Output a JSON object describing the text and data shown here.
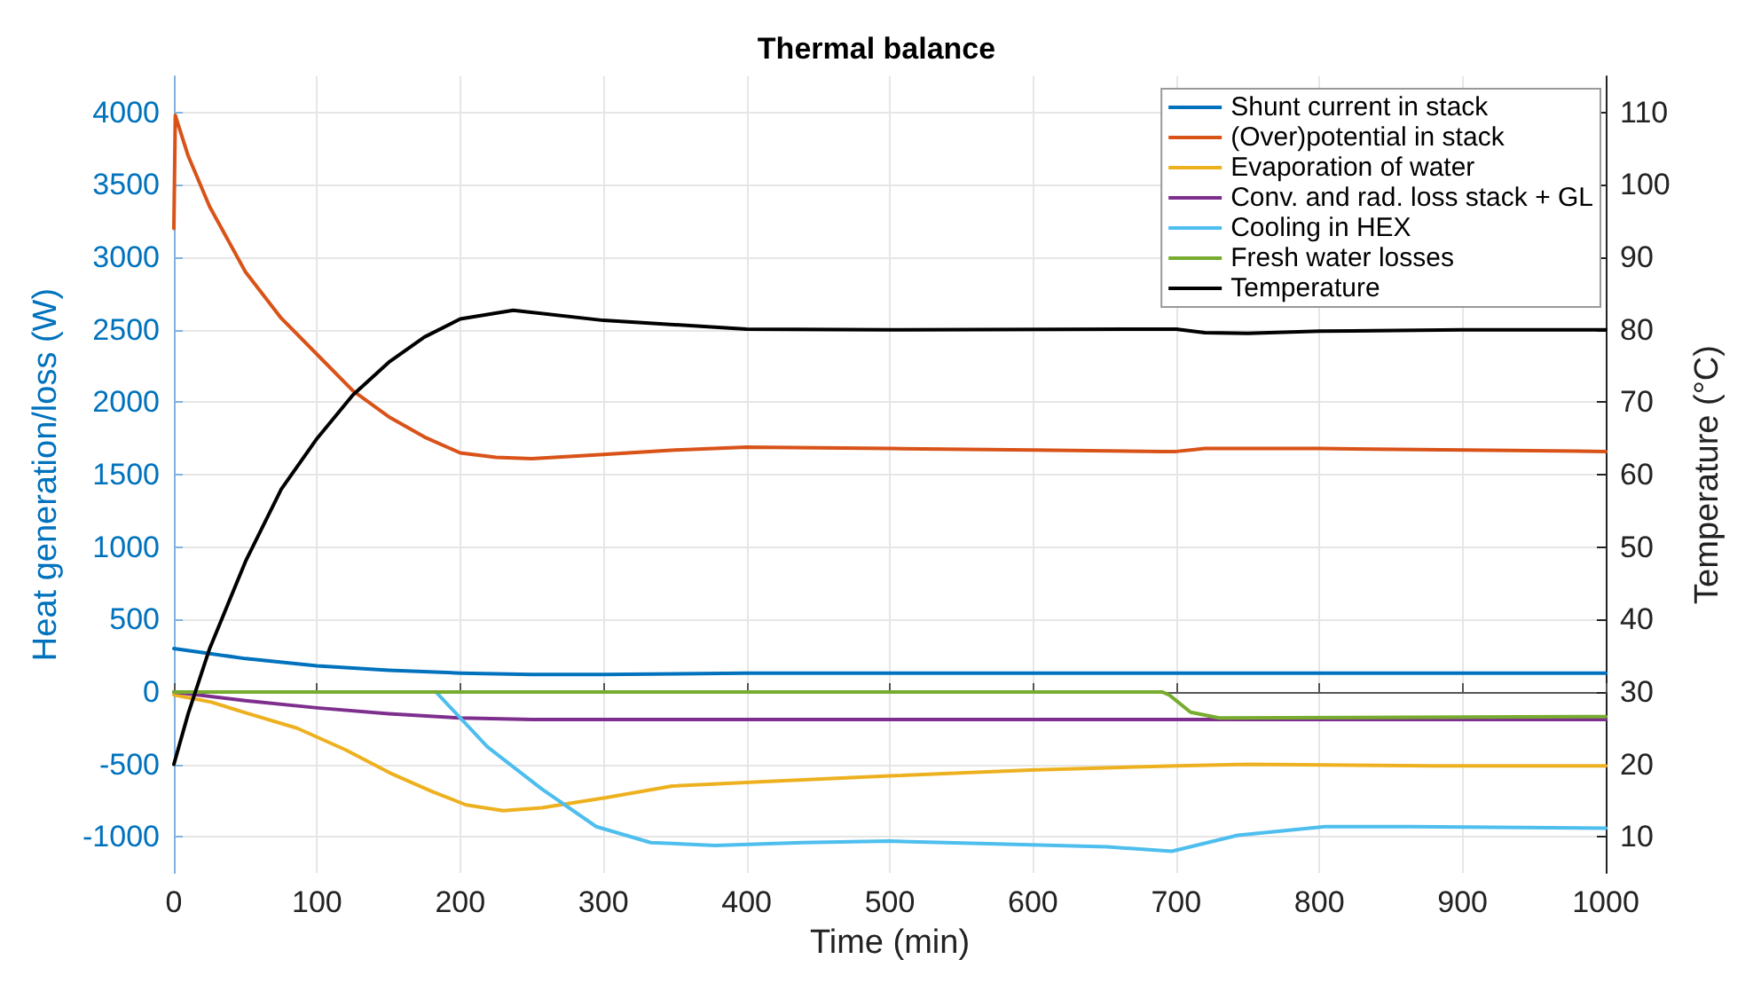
{
  "chart_data": {
    "type": "line",
    "title": "Thermal balance",
    "xlabel": "Time (min)",
    "ylabel": "Heat generation/loss (W)",
    "y2label": "Temperature (°C)",
    "xlim": [
      0,
      1000
    ],
    "xticks": [
      0,
      100,
      200,
      300,
      400,
      500,
      600,
      700,
      800,
      900,
      1000
    ],
    "ylim": [
      -1250,
      4250
    ],
    "yticks": [
      -1000,
      -500,
      0,
      500,
      1000,
      1500,
      2000,
      2500,
      3000,
      3500,
      4000
    ],
    "y2lim": [
      5,
      115
    ],
    "y2ticks": [
      10,
      20,
      30,
      40,
      50,
      60,
      70,
      80,
      90,
      100,
      110
    ],
    "grid": true,
    "legend": "top right",
    "line_style": "solid",
    "marker": "none",
    "series": [
      {
        "name": "Shunt current in stack",
        "color": "#0072bd",
        "x": [
          0,
          50,
          100,
          150,
          200,
          250,
          300,
          400,
          500,
          700,
          1000
        ],
        "values": [
          300,
          230,
          180,
          150,
          130,
          120,
          120,
          130,
          130,
          130,
          130
        ]
      },
      {
        "name": "(Over)potential in stack",
        "color": "#d95319",
        "x": [
          0,
          1,
          10,
          25,
          50,
          75,
          100,
          125,
          150,
          175,
          200,
          225,
          250,
          300,
          350,
          400,
          500,
          600,
          690,
          700,
          720,
          800,
          1000
        ],
        "values": [
          3200,
          3980,
          3700,
          3350,
          2900,
          2580,
          2330,
          2080,
          1900,
          1760,
          1650,
          1620,
          1610,
          1640,
          1670,
          1690,
          1680,
          1670,
          1660,
          1660,
          1680,
          1680,
          1660
        ]
      },
      {
        "name": "Evaporation of water",
        "color": "#edb120",
        "x": [
          0,
          26,
          52,
          86,
          120,
          151,
          181,
          204,
          230,
          257,
          302,
          348,
          409,
          500,
          598,
          700,
          750,
          879,
          1000
        ],
        "values": [
          -20,
          -70,
          -150,
          -250,
          -400,
          -560,
          -690,
          -780,
          -820,
          -800,
          -730,
          -650,
          -620,
          -580,
          -540,
          -510,
          -500,
          -510,
          -510
        ]
      },
      {
        "name": "Conv. and rad. loss stack + GL",
        "color": "#7e2f8e",
        "x": [
          0,
          50,
          100,
          150,
          200,
          250,
          300,
          500,
          1000
        ],
        "values": [
          0,
          -60,
          -110,
          -150,
          -180,
          -190,
          -190,
          -190,
          -190
        ]
      },
      {
        "name": "Cooling in HEX",
        "color": "#4dbeee",
        "x": [
          183,
          219,
          257,
          295,
          333,
          378,
          439,
          500,
          575,
          652,
          697,
          743,
          804,
          864,
          1000
        ],
        "values": [
          0,
          -380,
          -670,
          -930,
          -1040,
          -1060,
          -1040,
          -1030,
          -1050,
          -1070,
          -1100,
          -990,
          -930,
          -930,
          -940
        ]
      },
      {
        "name": "Fresh water losses",
        "color": "#77ac30",
        "x": [
          0,
          690,
          695,
          710,
          730,
          1000
        ],
        "values": [
          0,
          0,
          -20,
          -140,
          -180,
          -170
        ]
      },
      {
        "name": "Temperature",
        "color": "#000000",
        "axis": "y2",
        "x": [
          0,
          10,
          25,
          50,
          75,
          100,
          125,
          150,
          175,
          200,
          237,
          300,
          400,
          500,
          700,
          720,
          750,
          800,
          900,
          1000
        ],
        "values": [
          20,
          27,
          36,
          48,
          58,
          65,
          71,
          75.5,
          79,
          81.5,
          82.7,
          81.3,
          80.1,
          80,
          80.1,
          79.6,
          79.5,
          79.8,
          80,
          80
        ]
      }
    ]
  }
}
